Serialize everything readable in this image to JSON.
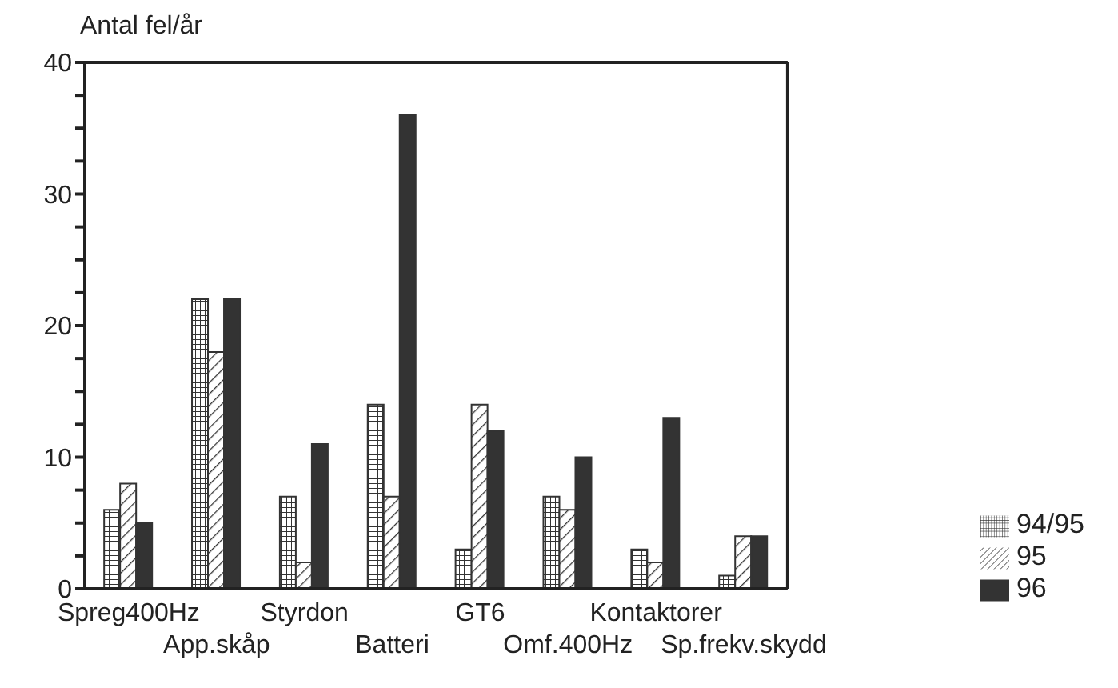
{
  "chart_data": {
    "type": "bar",
    "ylabel": "Antal fel/år",
    "categories": [
      "Spreg400Hz",
      "App.skåp",
      "Styrdon",
      "Batteri",
      "GT6",
      "Omf.400Hz",
      "Kontaktorer",
      "Sp.frekv.skydd"
    ],
    "series": [
      {
        "name": "94/95",
        "color": "#333333",
        "values": [
          6,
          22,
          7,
          14,
          3,
          7,
          3,
          1
        ]
      },
      {
        "name": "95",
        "color": "#333333",
        "values": [
          8,
          18,
          2,
          7,
          14,
          6,
          2,
          4
        ]
      },
      {
        "name": "96",
        "color": "#333333",
        "values": [
          5,
          22,
          11,
          36,
          12,
          10,
          13,
          4
        ]
      }
    ],
    "ylim": [
      0,
      40
    ],
    "yticks": [
      0,
      {
        "value": 2.5,
        "label": null
      },
      {
        "value": 5,
        "label": null
      },
      {
        "value": 7.5,
        "label": null
      },
      10,
      {
        "value": 12.5,
        "label": null
      },
      {
        "value": 15,
        "label": null
      },
      {
        "value": 17.5,
        "label": null
      },
      20,
      {
        "value": 22.5,
        "label": null
      },
      {
        "value": 25,
        "label": null
      },
      {
        "value": 27.5,
        "label": null
      },
      30,
      {
        "value": 32.5,
        "label": null
      },
      {
        "value": 35,
        "label": null
      },
      {
        "value": 37.5,
        "label": null
      },
      40
    ],
    "legend": "right"
  }
}
